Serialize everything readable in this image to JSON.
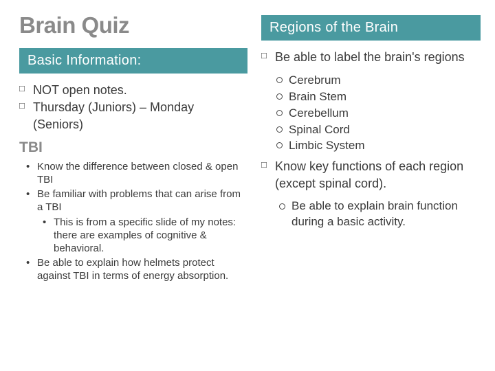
{
  "colors": {
    "band_bg": "#4a9aa0",
    "band_text": "#ffffff",
    "title_gray": "#8a8a8a",
    "body_text": "#3a3a3a",
    "page_bg": "#ffffff"
  },
  "typography": {
    "main_title_pt": 33,
    "band_pt": 20,
    "checklist_pt": 18,
    "subheading_pt": 21,
    "bullets_pt": 15,
    "subring_pt": 17
  },
  "left": {
    "main_title": "Brain Quiz",
    "basic_band": "Basic Information:",
    "basic_items": [
      "NOT open notes.",
      "Thursday (Juniors) – Monday (Seniors)"
    ],
    "tbi_heading": "TBI",
    "tbi_bullets": [
      "Know the difference between closed & open TBI",
      "Be familiar with problems that can arise from a TBI",
      "This is from a specific slide of my notes: there are examples of cognitive & behavioral.",
      "Be able to explain how helmets protect against TBI in terms of energy absorption."
    ]
  },
  "right": {
    "regions_band": "Regions of the Brain",
    "label_item": "Be able to label the brain's regions",
    "regions": [
      "Cerebrum",
      "Brain Stem",
      "Cerebellum",
      "Spinal Cord",
      "Limbic System"
    ],
    "know_item": "Know key functions of each region (except spinal cord).",
    "explain_item": "Be able to explain brain function during a basic activity."
  }
}
